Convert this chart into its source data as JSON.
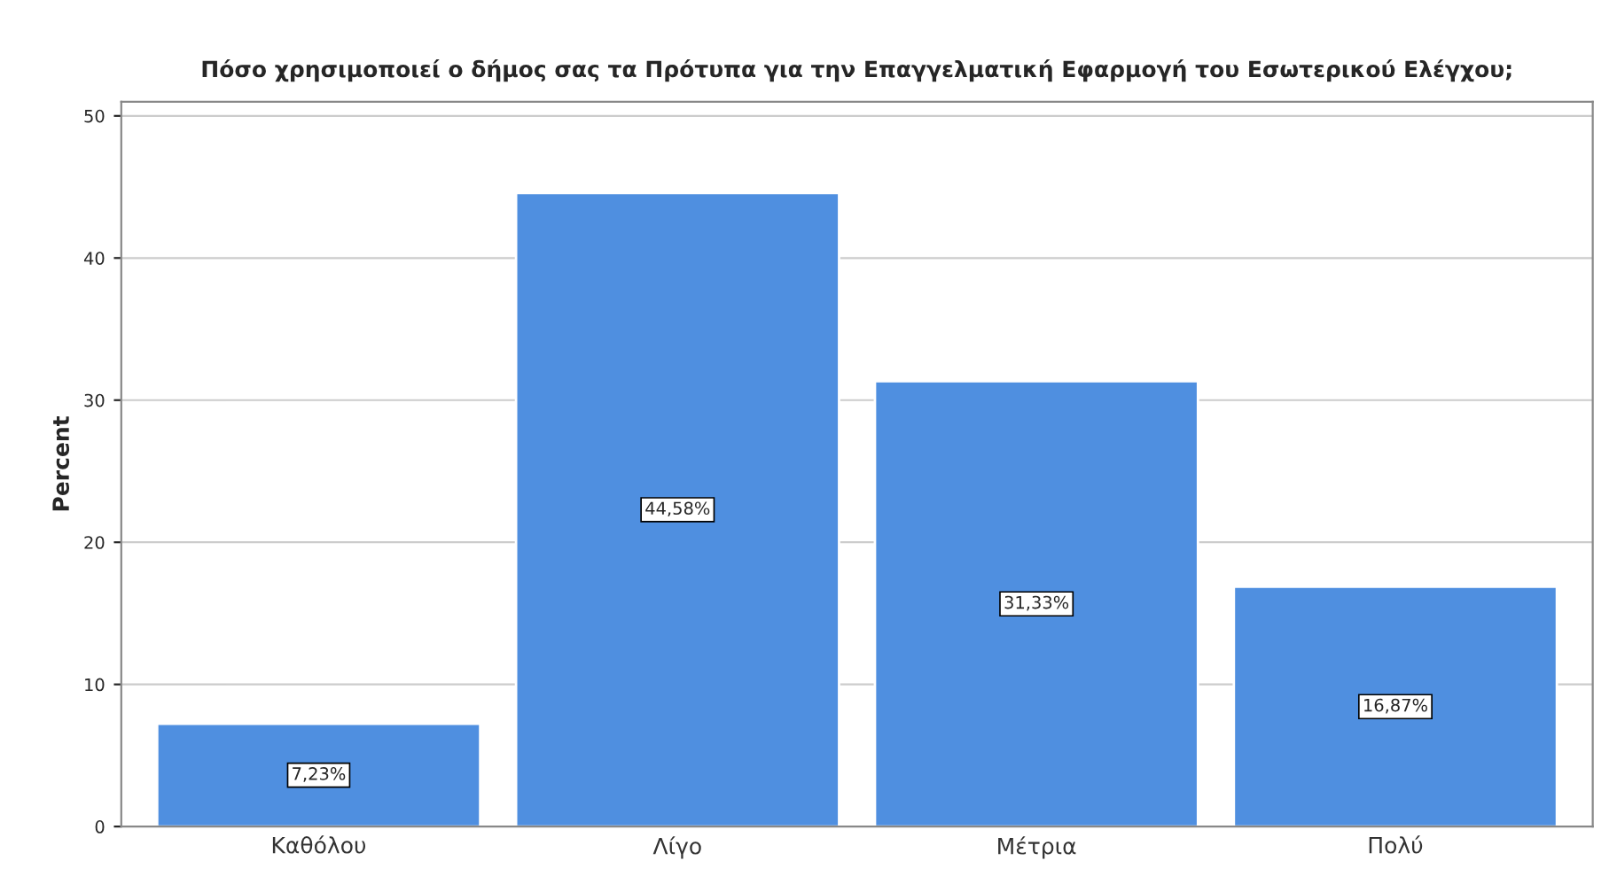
{
  "chart_data": {
    "type": "bar",
    "title": "Πόσο χρησιμοποιεί ο δήμος σας τα Πρότυπα για την Επαγγελματική Εφαρμογή του Εσωτερικού Ελέγχου;",
    "ylabel": "Percent",
    "categories": [
      "Καθόλου",
      "Λίγο",
      "Μέτρια",
      "Πολύ"
    ],
    "values": [
      7.23,
      44.58,
      31.33,
      16.87
    ],
    "value_labels": [
      "7,23%",
      "44,58%",
      "31,33%",
      "16,87%"
    ],
    "color": "#4f8fe0",
    "ylim": [
      0,
      51
    ],
    "yticks": [
      0,
      10,
      20,
      30,
      40,
      50
    ],
    "grid": "y"
  }
}
